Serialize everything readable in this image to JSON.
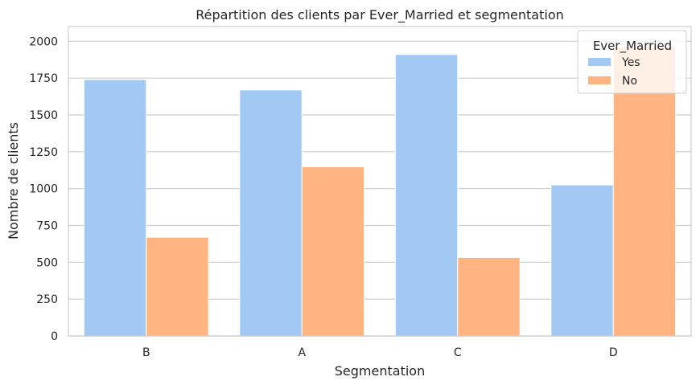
{
  "chart_data": {
    "type": "bar",
    "title": "Répartition des clients par Ever_Married et segmentation",
    "xlabel": "Segmentation",
    "ylabel": "Nombre de clients",
    "categories": [
      "B",
      "A",
      "C",
      "D"
    ],
    "series": [
      {
        "name": "Yes",
        "color": "#a1c9f4",
        "values": [
          1740,
          1670,
          1910,
          1025
        ]
      },
      {
        "name": "No",
        "color": "#ffb482",
        "values": [
          670,
          1148,
          532,
          1960
        ]
      }
    ],
    "ylim": [
      0,
      2100
    ],
    "yticks": [
      0,
      250,
      500,
      750,
      1000,
      1250,
      1500,
      1750,
      2000
    ],
    "ytick_labels": [
      "0",
      "250",
      "500",
      "750",
      "1000",
      "1250",
      "1500",
      "1750",
      "2000"
    ],
    "grid": true,
    "legend": {
      "title": "Ever_Married",
      "placement": "top-right"
    }
  }
}
